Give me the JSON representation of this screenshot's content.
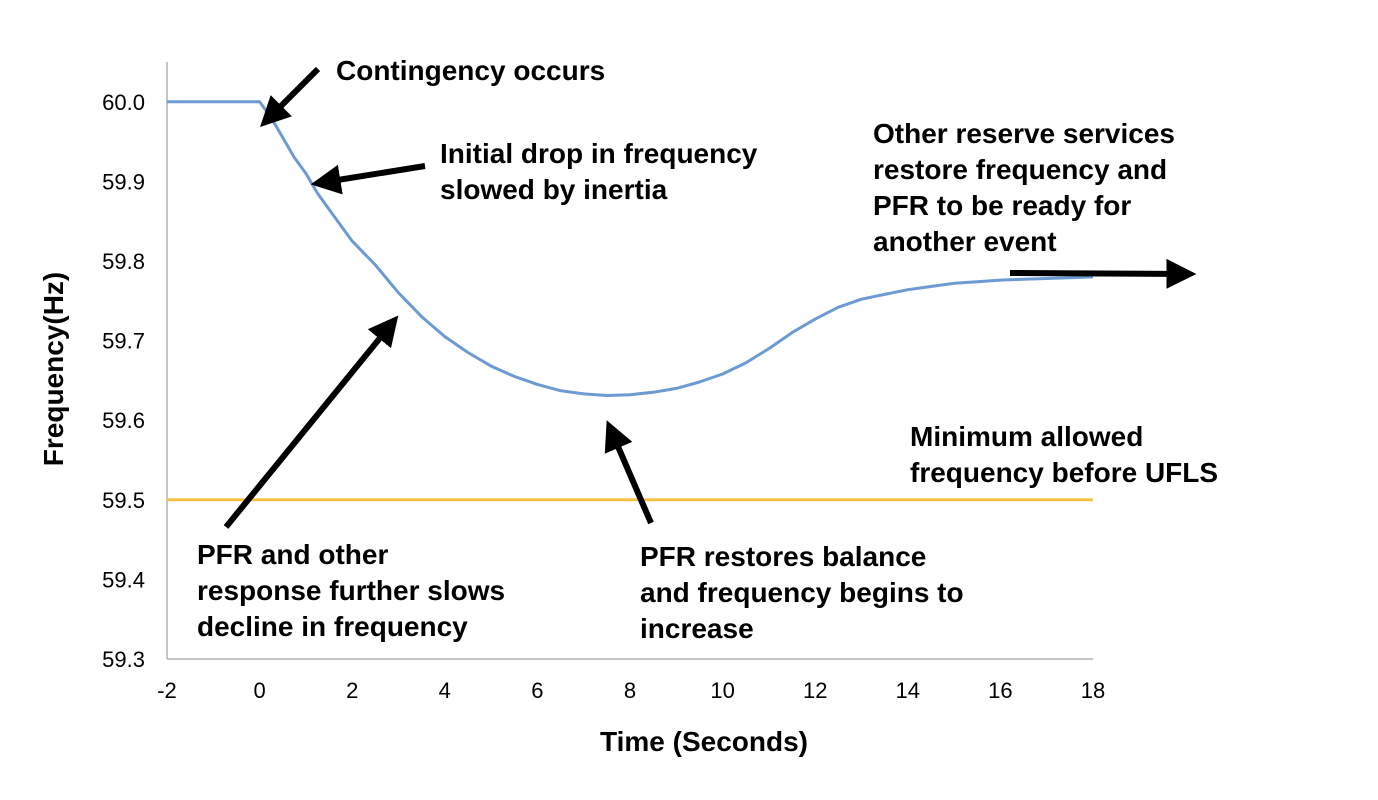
{
  "chart_data": {
    "type": "line",
    "title": "",
    "xlabel": "Time (Seconds)",
    "ylabel": "Frequency(Hz)",
    "xlim": [
      -2,
      18
    ],
    "ylim": [
      59.3,
      60.05
    ],
    "xticks": [
      "-2",
      "0",
      "2",
      "4",
      "6",
      "8",
      "10",
      "12",
      "14",
      "16",
      "18"
    ],
    "yticks": [
      "59.3",
      "59.4",
      "59.5",
      "59.6",
      "59.7",
      "59.8",
      "59.9",
      "60.0"
    ],
    "grid": false,
    "legend": "none",
    "series": [
      {
        "color": "#6b9bd2",
        "x": [
          -2,
          0,
          0.25,
          0.5,
          0.75,
          1,
          1.25,
          1.5,
          1.75,
          2,
          2.5,
          3,
          3.5,
          4,
          4.5,
          5,
          5.5,
          6,
          6.5,
          7,
          7.5,
          8,
          8.5,
          9,
          9.5,
          10,
          10.5,
          11,
          11.5,
          12,
          12.5,
          13,
          13.5,
          14,
          14.5,
          15,
          15.5,
          16,
          16.5,
          17,
          17.5,
          18
        ],
        "y": [
          60.0,
          60.0,
          59.98,
          59.955,
          59.93,
          59.91,
          59.885,
          59.865,
          59.845,
          59.825,
          59.795,
          59.76,
          59.73,
          59.705,
          59.685,
          59.668,
          59.655,
          59.645,
          59.637,
          59.633,
          59.631,
          59.632,
          59.635,
          59.64,
          59.648,
          59.658,
          59.672,
          59.69,
          59.71,
          59.727,
          59.742,
          59.752,
          59.758,
          59.764,
          59.768,
          59.772,
          59.774,
          59.776,
          59.777,
          59.778,
          59.779,
          59.78
        ]
      },
      {
        "color": "#f5c242",
        "x": [
          -2,
          18
        ],
        "y": [
          59.5,
          59.5
        ]
      }
    ],
    "annotations": [
      {
        "lines": [
          "Contingency occurs"
        ]
      },
      {
        "lines": [
          "Initial drop in frequency",
          "slowed by inertia"
        ]
      },
      {
        "lines": [
          "Other reserve services",
          "restore frequency and",
          "PFR to be ready for",
          "another event"
        ]
      },
      {
        "lines": [
          "Minimum allowed",
          "frequency before UFLS"
        ]
      },
      {
        "lines": [
          "PFR and other",
          "response further slows",
          "decline in frequency"
        ]
      },
      {
        "lines": [
          "PFR restores balance",
          "and frequency begins to",
          "increase"
        ]
      }
    ]
  }
}
